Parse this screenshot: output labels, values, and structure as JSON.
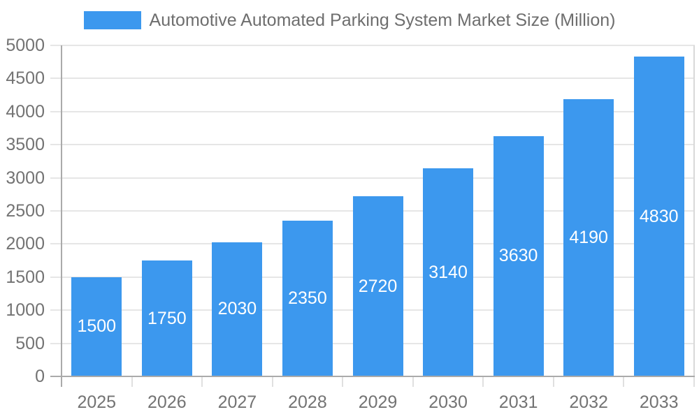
{
  "chart_data": {
    "type": "bar",
    "title": "Automotive Automated Parking System Market Size (Million)",
    "categories": [
      "2025",
      "2026",
      "2027",
      "2028",
      "2029",
      "2030",
      "2031",
      "2032",
      "2033"
    ],
    "values": [
      1500,
      1750,
      2030,
      2350,
      2720,
      3140,
      3630,
      4190,
      4830
    ],
    "xlabel": "",
    "ylabel": "",
    "ylim": [
      0,
      5000
    ],
    "ytick_interval": 500,
    "ytick_labels": [
      "0",
      "500",
      "1000",
      "1500",
      "2000",
      "2500",
      "3000",
      "3500",
      "4000",
      "4500",
      "5000"
    ],
    "grid": true,
    "legend_position": "top-center",
    "series_color": "#3C98EE",
    "bar_label_color": "#FFFFFF",
    "axis_text_color": "#737373",
    "title_text_color": "#6E6E6E",
    "grid_color": "#E6E6E6",
    "axis_line_color": "#AAAAAA",
    "plot_border_color": "#D9D9D9",
    "minor_tick_color": "#E0E0E0"
  }
}
